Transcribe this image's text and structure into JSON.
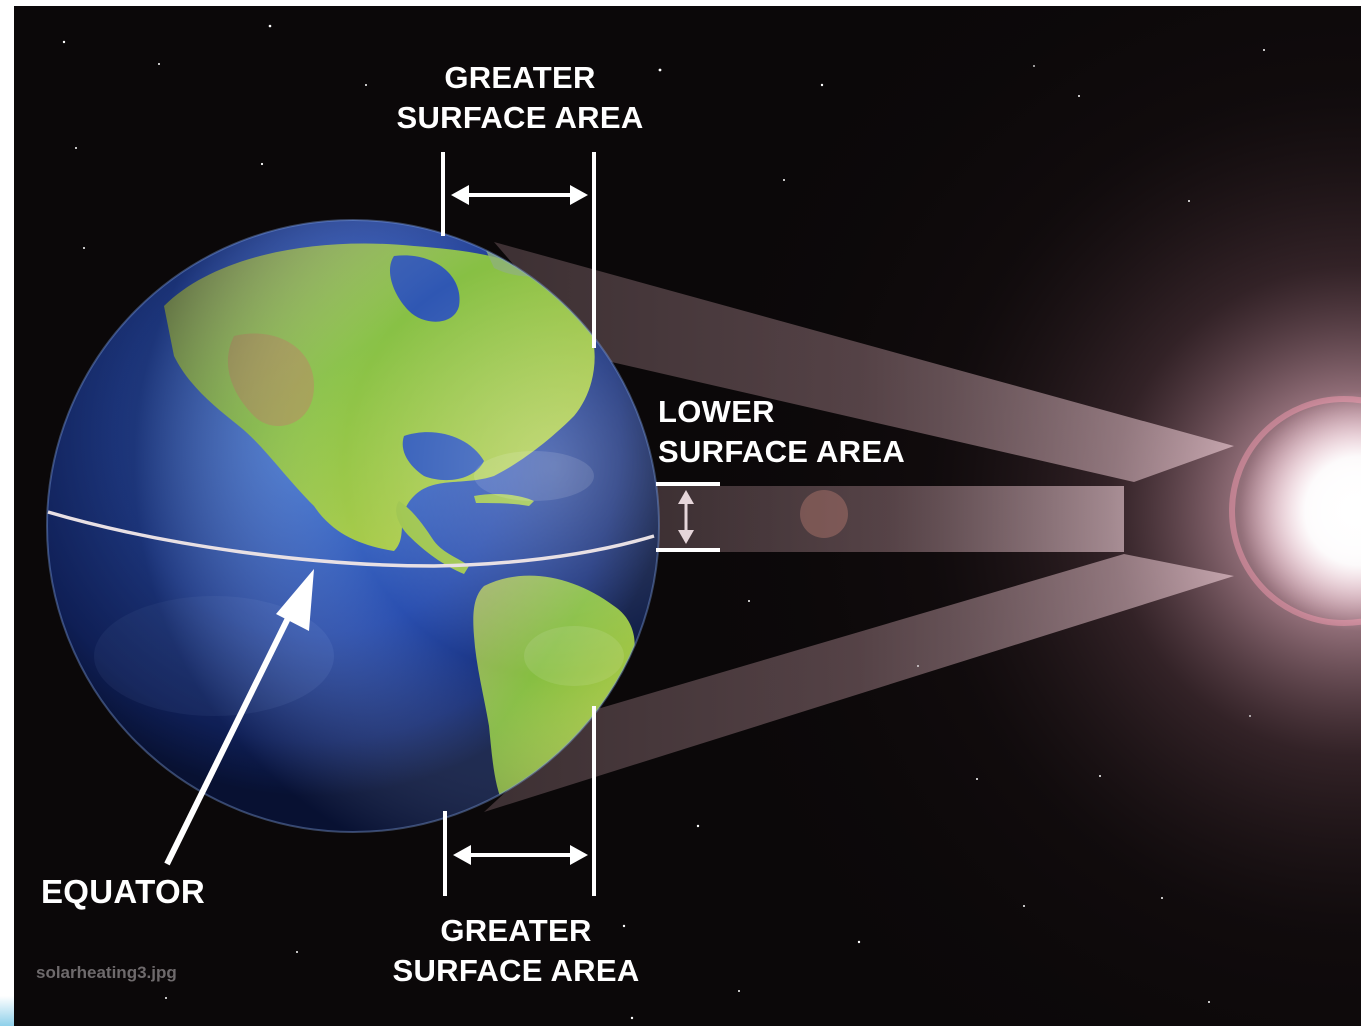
{
  "labels": {
    "greater_top_line1": "GREATER",
    "greater_top_line2": "SURFACE AREA",
    "lower_line1": "LOWER",
    "lower_line2": "SURFACE AREA",
    "greater_bottom_line1": "GREATER",
    "greater_bottom_line2": "SURFACE AREA",
    "equator": "EQUATOR",
    "watermark": "solarheating3.jpg"
  },
  "icons": {
    "sun": "sun-icon",
    "earth": "earth-globe-icon"
  },
  "colors": {
    "space": "#0b0809",
    "sun_glow": "#ffd6e6",
    "beam": "#c9a3ad",
    "label": "#ffffff",
    "watermark": "#6e6a6c"
  }
}
